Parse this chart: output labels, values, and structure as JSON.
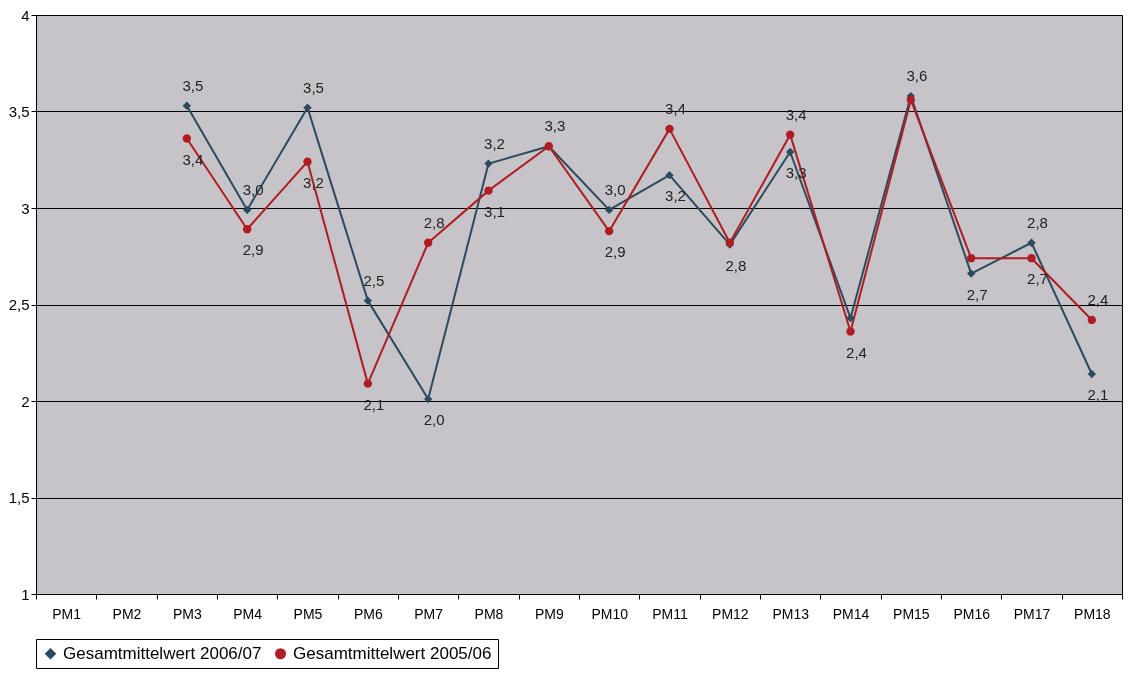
{
  "chart_data": {
    "type": "line",
    "categories": [
      "PM1",
      "PM2",
      "PM3",
      "PM4",
      "PM5",
      "PM6",
      "PM7",
      "PM8",
      "PM9",
      "PM10",
      "PM11",
      "PM12",
      "PM13",
      "PM14",
      "PM15",
      "PM16",
      "PM17",
      "PM18"
    ],
    "series": [
      {
        "name": "Gesamtmittelwert 2006/07",
        "color": "#2b4a5e",
        "marker": "diamond",
        "values": [
          null,
          null,
          3.53,
          2.99,
          3.52,
          2.52,
          2.01,
          3.23,
          3.32,
          2.99,
          3.17,
          2.81,
          3.29,
          2.43,
          3.58,
          2.66,
          2.82,
          2.14
        ],
        "value_labels": [
          null,
          null,
          "3,5",
          "3,0",
          "3,5",
          "2,5",
          "2,0",
          "3,2",
          "3,3",
          "3,0",
          "3,2",
          "2,8",
          "3,3",
          null,
          "3,6",
          "2,7",
          "2,8",
          "2,1"
        ]
      },
      {
        "name": "Gesamtmittelwert 2005/06",
        "color": "#b01c22",
        "marker": "circle",
        "values": [
          null,
          null,
          3.36,
          2.89,
          3.24,
          2.09,
          2.82,
          3.09,
          3.32,
          2.88,
          3.41,
          2.82,
          3.38,
          2.36,
          3.56,
          2.74,
          2.74,
          2.42
        ],
        "value_labels": [
          null,
          null,
          "3,4",
          "2,9",
          "3,2",
          "2,1",
          "2,8",
          "3,1",
          null,
          "2,9",
          "3,4",
          null,
          "3,4",
          "2,4",
          null,
          null,
          "2,7",
          "2,4"
        ]
      }
    ],
    "ylim": [
      1,
      4
    ],
    "yticks": [
      1,
      {
        "value": 1.5,
        "label": "1,5"
      },
      2,
      {
        "value": 2.5,
        "label": "2,5"
      },
      3,
      {
        "value": 3.5,
        "label": "3,5"
      },
      4
    ],
    "grid": "y",
    "legend": "bottom",
    "line_style": "solid"
  }
}
